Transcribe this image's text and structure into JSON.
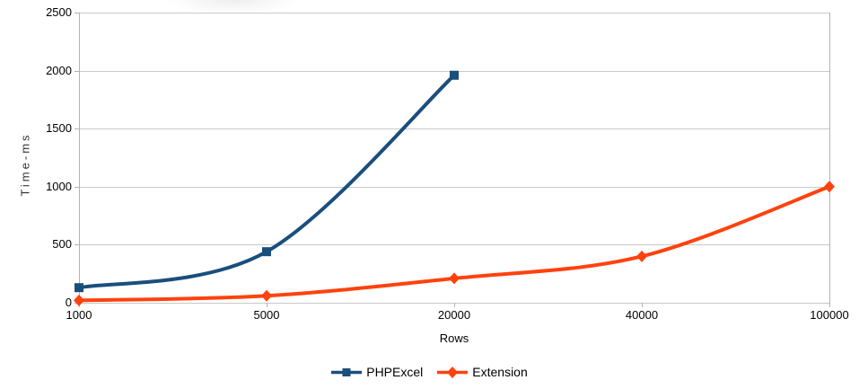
{
  "chart_data": {
    "type": "line",
    "title": "",
    "xlabel": "Rows",
    "ylabel": "Time-ms",
    "categories": [
      "1000",
      "5000",
      "20000",
      "40000",
      "100000"
    ],
    "series": [
      {
        "name": "PHPExcel",
        "marker": "square",
        "color": "#1a4e7d",
        "values": [
          130,
          440,
          1960,
          null,
          null
        ]
      },
      {
        "name": "Extension",
        "marker": "diamond",
        "color": "#ff420e",
        "values": [
          20,
          60,
          210,
          400,
          1000
        ]
      }
    ],
    "ylim": [
      0,
      2500
    ],
    "yticks": [
      0,
      500,
      1000,
      1500,
      2000,
      2500
    ],
    "grid": "horizontal-only",
    "legend_position": "bottom",
    "line_smooth": true,
    "axis_color": "#b3b3b3",
    "gridline_color": "#c9c9c9",
    "text_color": "#000000"
  }
}
